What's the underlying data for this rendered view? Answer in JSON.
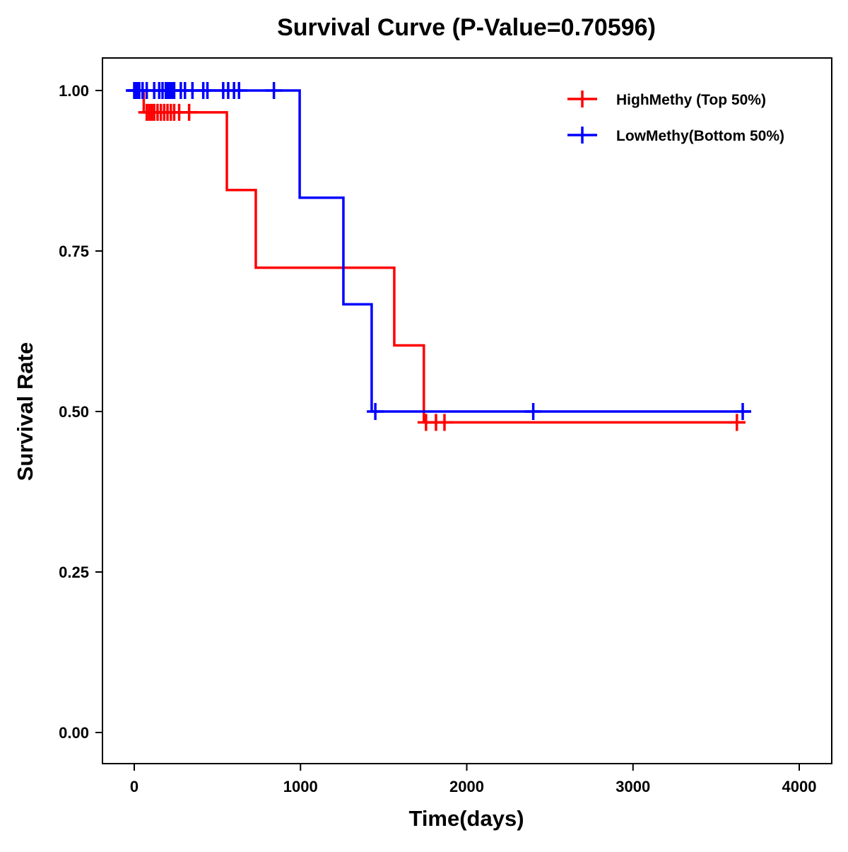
{
  "chart_data": {
    "type": "line",
    "subtype": "kaplan-meier",
    "title": "Survival Curve (P-Value=0.70596)",
    "xlabel": "Time(days)",
    "ylabel": "Survival Rate",
    "xlim": [
      -200,
      4200
    ],
    "ylim": [
      -0.05,
      1.05
    ],
    "xticks": [
      0,
      1000,
      2000,
      3000,
      4000
    ],
    "xtick_labels": [
      "0",
      "1000",
      "2000",
      "3000",
      "4000"
    ],
    "yticks": [
      0,
      0.25,
      0.5,
      0.75,
      1.0
    ],
    "ytick_labels": [
      "0.00",
      "0.25",
      "0.50",
      "0.75",
      "1.00"
    ],
    "grid": false,
    "legend_position": "top-right",
    "series": [
      {
        "name": "HighMethy (Top 50%)",
        "color": "#ff0000",
        "steps": [
          [
            0,
            1.0
          ],
          [
            57,
            0.966
          ],
          [
            557,
            0.845
          ],
          [
            731,
            0.724
          ],
          [
            1564,
            0.603
          ],
          [
            1742,
            0.483
          ],
          [
            3676,
            0.483
          ]
        ],
        "censored": [
          [
            75,
            0.966
          ],
          [
            90,
            0.966
          ],
          [
            105,
            0.966
          ],
          [
            120,
            0.966
          ],
          [
            140,
            0.966
          ],
          [
            160,
            0.966
          ],
          [
            180,
            0.966
          ],
          [
            200,
            0.966
          ],
          [
            220,
            0.966
          ],
          [
            240,
            0.966
          ],
          [
            270,
            0.966
          ],
          [
            330,
            0.966
          ],
          [
            1755,
            0.483
          ],
          [
            1815,
            0.483
          ],
          [
            1866,
            0.483
          ],
          [
            3625,
            0.483
          ]
        ]
      },
      {
        "name": "LowMethy(Bottom 50%)",
        "color": "#0000ff",
        "steps": [
          [
            -40,
            1.0
          ],
          [
            995,
            1.0
          ],
          [
            995,
            0.833
          ],
          [
            1258,
            0.667
          ],
          [
            1428,
            0.5
          ],
          [
            3710,
            0.5
          ]
        ],
        "censored": [
          [
            0,
            1
          ],
          [
            5,
            1
          ],
          [
            10,
            1
          ],
          [
            15,
            1
          ],
          [
            20,
            1
          ],
          [
            25,
            1
          ],
          [
            30,
            1
          ],
          [
            50,
            1
          ],
          [
            75,
            1
          ],
          [
            120,
            1
          ],
          [
            150,
            1
          ],
          [
            170,
            1
          ],
          [
            190,
            1
          ],
          [
            200,
            1
          ],
          [
            210,
            1
          ],
          [
            220,
            1
          ],
          [
            230,
            1
          ],
          [
            240,
            1
          ],
          [
            280,
            1
          ],
          [
            305,
            1
          ],
          [
            350,
            1
          ],
          [
            415,
            1
          ],
          [
            440,
            1
          ],
          [
            535,
            1
          ],
          [
            565,
            1
          ],
          [
            600,
            1
          ],
          [
            630,
            1
          ],
          [
            840,
            1
          ],
          [
            1450,
            0.5
          ],
          [
            2400,
            0.5
          ],
          [
            3660,
            0.5
          ]
        ]
      }
    ]
  }
}
